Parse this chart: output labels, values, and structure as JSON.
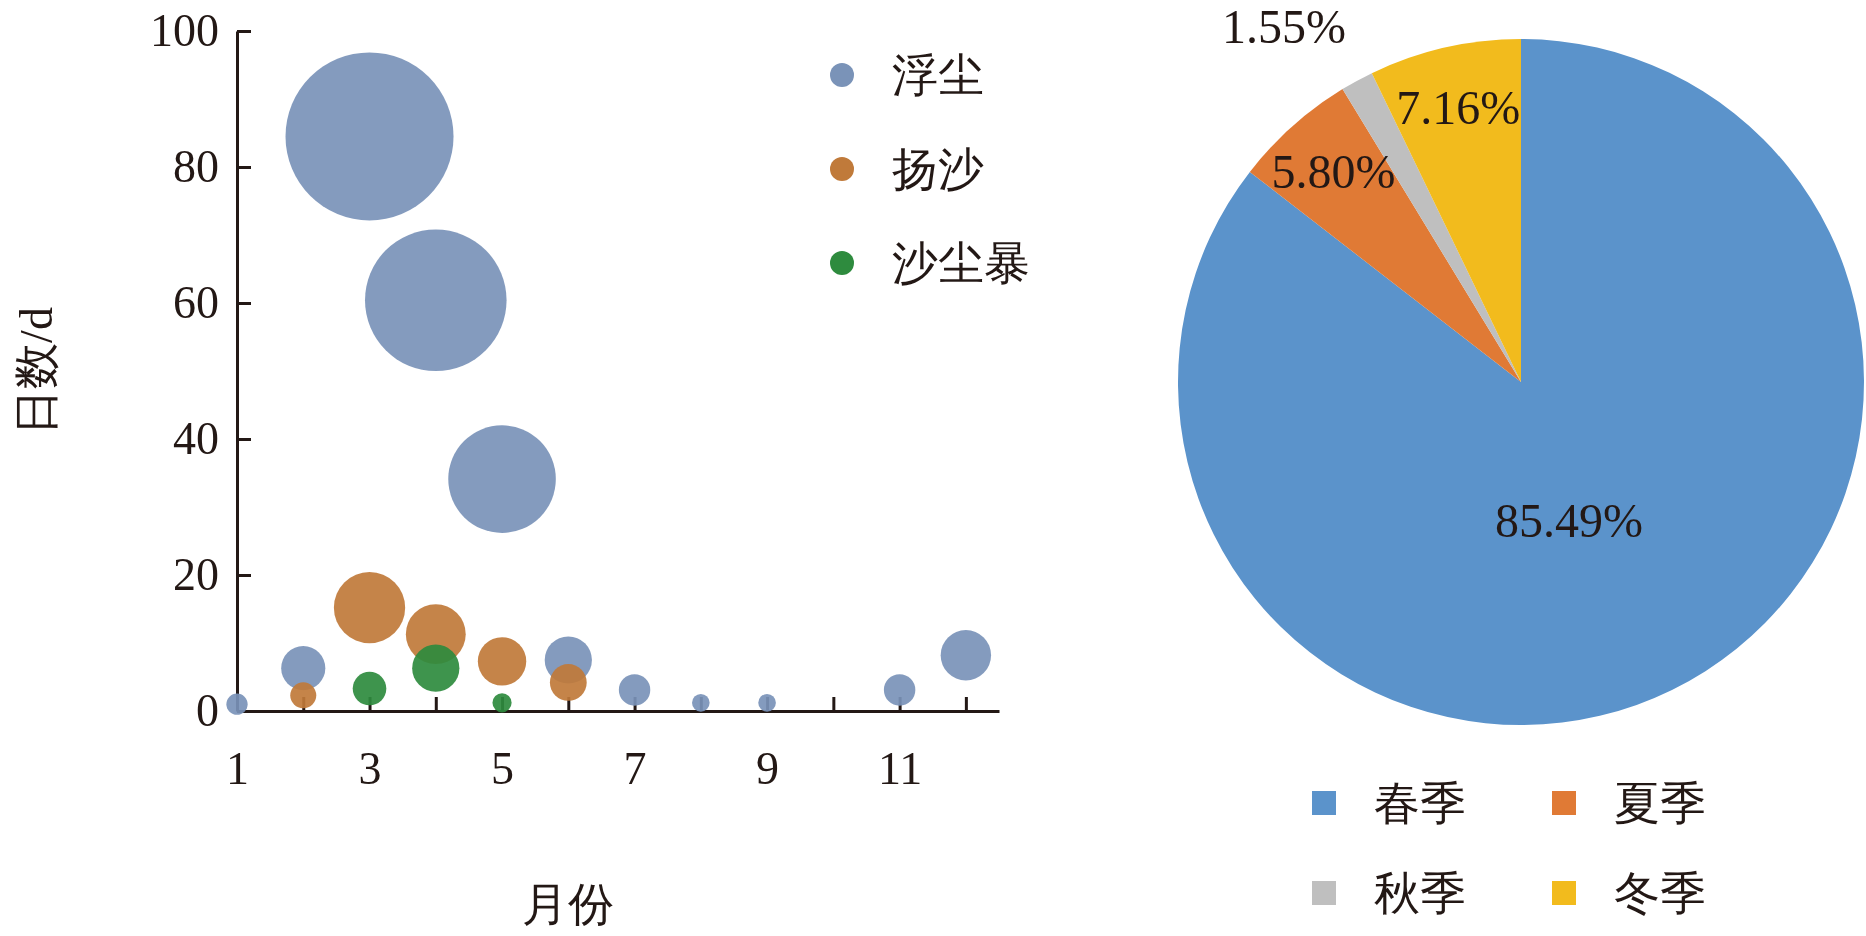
{
  "chart_data": [
    {
      "type": "bubble",
      "xlabel": "月份",
      "ylabel": "日数/d",
      "xlim": [
        1,
        12.5
      ],
      "ylim": [
        0,
        100
      ],
      "xticks": [
        1,
        {
          "value": 2,
          "label": null
        },
        3,
        {
          "value": 4,
          "label": null
        },
        5,
        {
          "value": 6,
          "label": null
        },
        7,
        {
          "value": 8,
          "label": null
        },
        9,
        {
          "value": 10,
          "label": null
        },
        11,
        {
          "value": 12,
          "label": null
        }
      ],
      "yticks": [
        0,
        20,
        40,
        60,
        80,
        100
      ],
      "grid": false,
      "legend": "top right",
      "series": [
        {
          "name": "浮尘",
          "color": "#7a93b8",
          "x": [
            1,
            2,
            3,
            4,
            5,
            6,
            7,
            8,
            9,
            11,
            12
          ],
          "values": [
            1,
            6.3,
            84.5,
            60.4,
            34.1,
            7.5,
            3.1,
            1.2,
            1.2,
            3.1,
            8.2
          ],
          "sizes": [
            0.016,
            0.069,
            1,
            0.71,
            0.41,
            0.079,
            0.035,
            0.011,
            0.011,
            0.035,
            0.09
          ]
        },
        {
          "name": "扬沙",
          "color": "#c07a3a",
          "x": [
            2,
            3,
            4,
            5,
            6
          ],
          "values": [
            2.3,
            15.2,
            11.3,
            7.3,
            4.2
          ],
          "sizes": [
            0.024,
            0.18,
            0.127,
            0.083,
            0.048
          ]
        },
        {
          "name": "沙尘暴",
          "color": "#2e8b3e",
          "x": [
            3,
            4,
            5
          ],
          "values": [
            3.3,
            6.3,
            1.2
          ],
          "sizes": [
            0.04,
            0.079,
            0.013
          ]
        }
      ]
    },
    {
      "type": "pie",
      "categories": [
        "春季",
        "夏季",
        "秋季",
        "冬季"
      ],
      "values": [
        85.49,
        5.8,
        1.55,
        7.16
      ],
      "colors": [
        "#5b93cb",
        "#e07a35",
        "#bfbfbf",
        "#f2bb1d"
      ],
      "value_labels": [
        "85.49%",
        "5.80%",
        "1.55%",
        "7.16%"
      ],
      "legend": "bottom"
    }
  ]
}
